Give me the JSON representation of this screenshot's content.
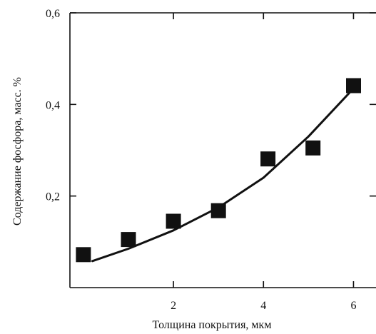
{
  "chart_data": {
    "type": "scatter",
    "title": "",
    "xlabel": "Толщина покрытия, мкм",
    "ylabel": "Содержание фосфора, масс. %",
    "xlim": [
      -0.3,
      6.5
    ],
    "ylim": [
      0,
      0.6
    ],
    "x_ticks": [
      {
        "value": 2,
        "label": "2"
      },
      {
        "value": 4,
        "label": "4"
      },
      {
        "value": 6,
        "label": "6"
      }
    ],
    "y_ticks": [
      {
        "value": 0.2,
        "label": "0,2"
      },
      {
        "value": 0.4,
        "label": "0,4"
      },
      {
        "value": 0.6,
        "label": "0,6"
      }
    ],
    "grid": false,
    "series": [
      {
        "kind": "points",
        "marker": "square",
        "color": "#111111",
        "x": [
          0.0,
          1.0,
          2.0,
          3.0,
          4.1,
          5.1,
          6.0
        ],
        "y": [
          0.072,
          0.105,
          0.145,
          0.168,
          0.281,
          0.305,
          0.441
        ]
      },
      {
        "kind": "line",
        "color": "#111111",
        "x": [
          0.2,
          1.0,
          2.0,
          3.0,
          4.0,
          5.0,
          6.0
        ],
        "y": [
          0.058,
          0.085,
          0.125,
          0.175,
          0.24,
          0.33,
          0.435
        ]
      }
    ]
  }
}
